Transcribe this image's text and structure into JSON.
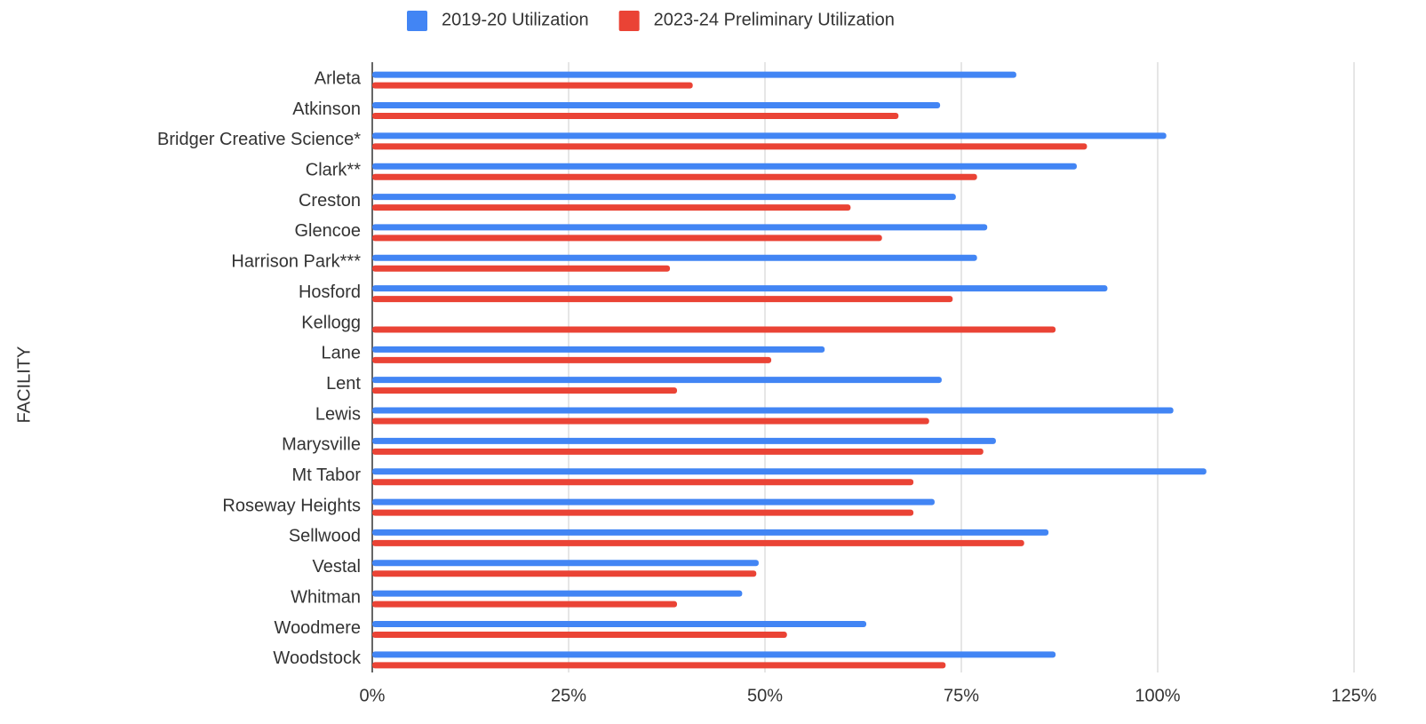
{
  "chart_data": {
    "type": "bar",
    "orientation": "horizontal",
    "y_label": "FACILITY",
    "categories": [
      "Arleta",
      "Atkinson",
      "Bridger Creative Science*",
      "Clark**",
      "Creston",
      "Glencoe",
      "Harrison Park***",
      "Hosford",
      "Kellogg",
      "Lane",
      "Lent",
      "Lewis",
      "Marysville",
      "Mt Tabor",
      "Roseway Heights",
      "Sellwood",
      "Vestal",
      "Whitman",
      "Woodmere",
      "Woodstock"
    ],
    "series": [
      {
        "name": "2019-20 Utilization",
        "color": "#4285f4",
        "values": [
          82,
          72.3,
          101.1,
          89.7,
          74.3,
          78.3,
          77,
          93.6,
          null,
          57.6,
          72.5,
          102,
          79.4,
          106.2,
          71.6,
          86.1,
          49.2,
          47.1,
          62.9,
          87
        ]
      },
      {
        "name": "2023-24 Preliminary Utilization",
        "color": "#ea4335",
        "values": [
          40.8,
          67,
          91,
          77,
          60.9,
          64.9,
          37.9,
          73.9,
          87,
          50.8,
          38.8,
          70.9,
          77.8,
          68.9,
          68.9,
          83,
          48.9,
          38.8,
          52.8,
          73
        ]
      }
    ],
    "xlim": [
      0,
      125
    ],
    "xticks": [
      {
        "value": 0,
        "label": "0%"
      },
      {
        "value": 25,
        "label": "25%"
      },
      {
        "value": 50,
        "label": "50%"
      },
      {
        "value": 75,
        "label": "75%"
      },
      {
        "value": 100,
        "label": "100%"
      },
      {
        "value": 125,
        "label": "125%"
      }
    ],
    "grid": true,
    "legend": "top"
  }
}
